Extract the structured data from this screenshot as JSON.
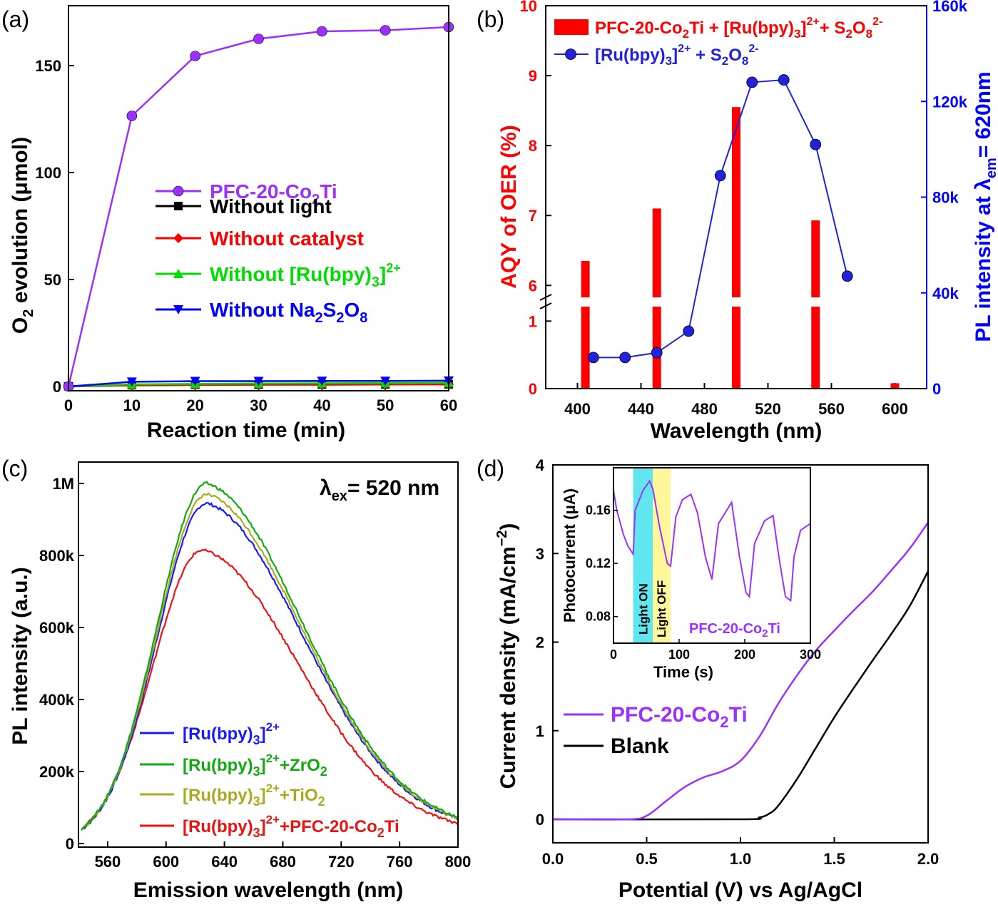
{
  "panels": {
    "a": {
      "label": "(a)",
      "chart_data": {
        "type": "line",
        "xlabel": "Reaction time (min)",
        "ylabel": "O2 evolution (μmol)",
        "xlim": [
          0,
          60
        ],
        "ylim": [
          -2,
          178
        ],
        "xticks": [
          "0",
          "10",
          "20",
          "30",
          "40",
          "50",
          "60"
        ],
        "yticks": [
          "0",
          "50",
          "100",
          "150"
        ],
        "x": [
          0,
          10,
          20,
          30,
          40,
          50,
          60
        ],
        "legend_position": "center",
        "series": [
          {
            "name": "PFC-20-Co2Ti",
            "color": "#9b30ff",
            "marker": "circle",
            "values": [
              0,
              126.5,
              154.5,
              162.5,
              166,
              166.5,
              168
            ]
          },
          {
            "name": "Without light",
            "color": "#000000",
            "marker": "square",
            "values": [
              0,
              0.6,
              0.8,
              0.9,
              0.9,
              1,
              1
            ]
          },
          {
            "name": "Without catalyst",
            "color": "#ff0000",
            "marker": "diamond",
            "values": [
              0,
              0.5,
              0.7,
              0.8,
              0.8,
              0.9,
              0.9
            ]
          },
          {
            "name": "Without [Ru(bpy)3]2+",
            "color": "#00dd00",
            "marker": "triangle-up",
            "values": [
              0,
              1,
              1.2,
              1.4,
              1.5,
              1.6,
              1.7
            ]
          },
          {
            "name": "Without Na2S2O8",
            "color": "#0000ff",
            "marker": "triangle-down",
            "values": [
              0,
              2.2,
              2.5,
              2.5,
              2.6,
              2.6,
              2.7
            ]
          }
        ]
      }
    },
    "b": {
      "label": "(b)",
      "chart_data": {
        "type": "bar",
        "xlabel": "Wavelength (nm)",
        "ylabel_left": "AQY of OER (%)",
        "ylabel_right": "PL intensity at λem= 620nm",
        "xlim": [
          380,
          620
        ],
        "xticks": [
          "400",
          "440",
          "480",
          "520",
          "560",
          "600"
        ],
        "y_left_ticks": [
          "0",
          "1",
          "6",
          "7",
          "8",
          "9",
          "10"
        ],
        "y_right_ticks": [
          "0",
          "40k",
          "80k",
          "120k",
          "160k"
        ],
        "y_left_axis_break": [
          1.5,
          5.85
        ],
        "y_right_lim": [
          0,
          160000
        ],
        "bars": {
          "name": "PFC-20-Co2Ti + [Ru(bpy)3]2+ + S2O8 2-",
          "color": "#ff0000",
          "x": [
            405,
            450,
            500,
            550,
            600
          ],
          "values": [
            6.35,
            7.1,
            8.55,
            6.93,
            0.08
          ]
        },
        "line": {
          "name": "[Ru(bpy)3]2+ + S2O8 2-",
          "color": "#2222dd",
          "x": [
            410,
            430,
            450,
            470,
            490,
            510,
            530,
            550,
            570
          ],
          "values": [
            13000,
            13000,
            15000,
            24000,
            89000,
            128000,
            129000,
            102000,
            47000
          ]
        }
      }
    },
    "c": {
      "label": "(c)",
      "annotation": "λex= 520 nm",
      "chart_data": {
        "type": "line",
        "xlabel": "Emission wavelength (nm)",
        "ylabel": "PL intensity (a.u.)",
        "xlim": [
          540,
          800
        ],
        "ylim": [
          0,
          1000000
        ],
        "xticks": [
          "560",
          "600",
          "640",
          "680",
          "720",
          "760",
          "800"
        ],
        "yticks": [
          "0",
          "200k",
          "400k",
          "600k",
          "800k",
          "1M"
        ],
        "legend_position": "bottom-left",
        "series": [
          {
            "name": "[Ru(bpy)3]2+",
            "color": "#1a1aff",
            "peak_x": 628,
            "peak_y": 945000
          },
          {
            "name": "[Ru(bpy)3]2+ +ZrO2",
            "color": "#11aa11",
            "peak_x": 628,
            "peak_y": 1000000
          },
          {
            "name": "[Ru(bpy)3]2+ +TiO2",
            "color": "#aaaa22",
            "peak_x": 628,
            "peak_y": 970000
          },
          {
            "name": "[Ru(bpy)3]2+ +PFC-20-Co2Ti",
            "color": "#ee1111",
            "peak_x": 625,
            "peak_y": 815000
          }
        ]
      }
    },
    "d": {
      "label": "(d)",
      "chart_data": {
        "type": "line",
        "xlabel": "Potential (V) vs Ag/AgCl",
        "ylabel": "Current density (mA/cm⁻²)",
        "xlim": [
          0,
          2
        ],
        "ylim": [
          -0.2,
          4
        ],
        "xticks": [
          "0.0",
          "0.5",
          "1.0",
          "1.5",
          "2.0"
        ],
        "yticks": [
          "0",
          "1",
          "2",
          "3",
          "4"
        ],
        "legend_position": "bottom-left",
        "series": [
          {
            "name": "PFC-20-Co2Ti",
            "color": "#9b30ff",
            "x": [
              0,
              0.4,
              0.5,
              0.6,
              0.7,
              0.8,
              0.9,
              1.0,
              1.1,
              1.2,
              1.3,
              1.4,
              1.5,
              1.6,
              1.7,
              1.8,
              1.9,
              2.0
            ],
            "values": [
              0,
              0,
              0.04,
              0.2,
              0.36,
              0.47,
              0.54,
              0.66,
              0.93,
              1.3,
              1.62,
              1.9,
              2.13,
              2.35,
              2.56,
              2.8,
              3.05,
              3.35
            ]
          },
          {
            "name": "Blank",
            "color": "#000000",
            "x": [
              0,
              1.0,
              1.1,
              1.15,
              1.2,
              1.3,
              1.4,
              1.5,
              1.6,
              1.7,
              1.8,
              1.9,
              2.0
            ],
            "values": [
              0,
              0,
              0.02,
              0.06,
              0.15,
              0.45,
              0.8,
              1.15,
              1.47,
              1.78,
              2.08,
              2.4,
              2.8
            ]
          }
        ]
      },
      "inset": {
        "chart_data": {
          "type": "line",
          "xlabel": "Time (s)",
          "ylabel": "Photocurrent (μA)",
          "xlim": [
            0,
            300
          ],
          "ylim": [
            0.06,
            0.192
          ],
          "xticks": [
            "0",
            "100",
            "200",
            "300"
          ],
          "yticks": [
            "0.08",
            "0.12",
            "0.16"
          ],
          "label": "PFC-20-Co2Ti",
          "light_on_label": "Light ON",
          "light_off_label": "Light OFF",
          "light_on_range": [
            30,
            60
          ],
          "light_off_range": [
            60,
            87
          ],
          "series": [
            {
              "name": "PFC-20-Co2Ti",
              "color": "#9b30ff",
              "x": [
                0,
                5,
                15,
                22,
                30,
                33,
                45,
                55,
                60,
                70,
                82,
                87,
                95,
                105,
                118,
                128,
                140,
                150,
                160,
                170,
                180,
                192,
                202,
                207,
                215,
                230,
                243,
                252,
                262,
                270,
                275,
                285,
                300
              ],
              "values": [
                0.175,
                0.16,
                0.142,
                0.133,
                0.127,
                0.16,
                0.175,
                0.182,
                0.176,
                0.148,
                0.12,
                0.118,
                0.155,
                0.168,
                0.172,
                0.158,
                0.125,
                0.108,
                0.15,
                0.158,
                0.166,
                0.125,
                0.098,
                0.095,
                0.135,
                0.152,
                0.156,
                0.125,
                0.095,
                0.092,
                0.125,
                0.145,
                0.15
              ]
            }
          ]
        }
      }
    }
  }
}
